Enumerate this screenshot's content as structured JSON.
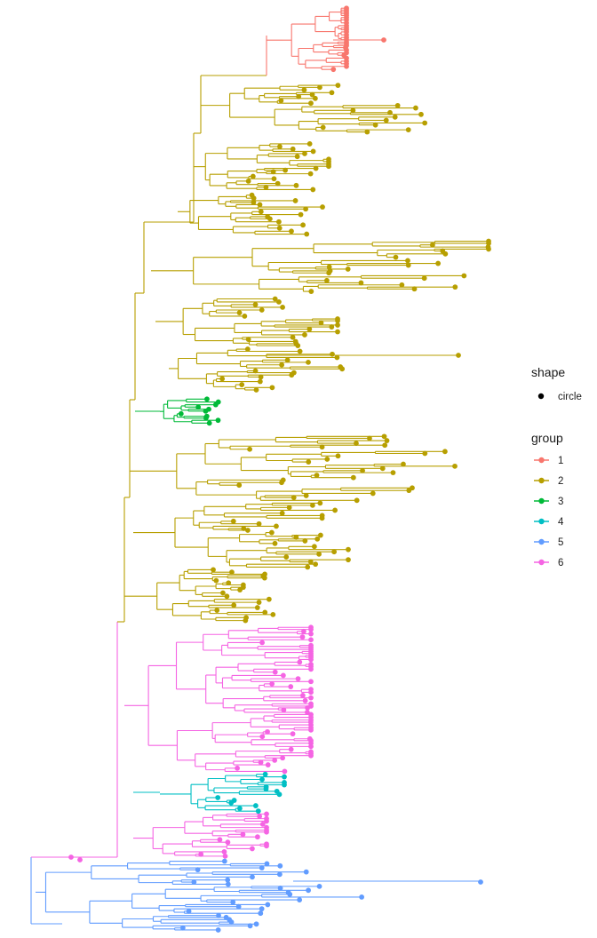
{
  "chart_data": {
    "type": "phylogenetic-tree",
    "legend": {
      "shape": {
        "title": "shape",
        "items": [
          {
            "label": "circle"
          }
        ]
      },
      "group": {
        "title": "group",
        "items": [
          {
            "label": "1",
            "color": "#F8766D"
          },
          {
            "label": "2",
            "color": "#B79F00"
          },
          {
            "label": "3",
            "color": "#00BA38"
          },
          {
            "label": "4",
            "color": "#00BFC4"
          },
          {
            "label": "5",
            "color": "#619CFF"
          },
          {
            "label": "6",
            "color": "#F564E3"
          }
        ]
      }
    }
  }
}
